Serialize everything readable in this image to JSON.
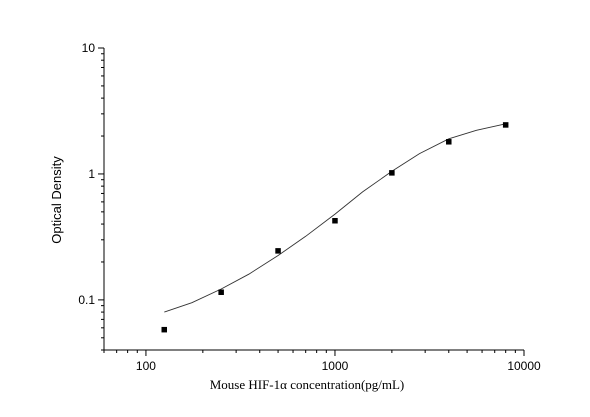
{
  "chart_data": {
    "type": "scatter",
    "title": "",
    "xlabel": "Mouse HIF-1α  concentration(pg/mL)",
    "ylabel": "Optical Density",
    "x_scale": "log",
    "y_scale": "log",
    "xlim": [
      60,
      10000
    ],
    "ylim": [
      0.04,
      10
    ],
    "x_ticks": [
      100,
      1000,
      10000
    ],
    "x_tick_labels": [
      "100",
      "1000",
      "10000"
    ],
    "y_ticks": [
      0.1,
      1,
      10
    ],
    "y_tick_labels": [
      "0.1",
      "1",
      "10"
    ],
    "grid": false,
    "legend": "none",
    "series": [
      {
        "type": "scatter",
        "x": [
          125,
          250,
          500,
          1000,
          2000,
          4000,
          8000
        ],
        "y": [
          0.058,
          0.115,
          0.245,
          0.425,
          1.02,
          1.8,
          2.45
        ]
      },
      {
        "type": "line",
        "fit": "four-parameter logistic",
        "x": [
          125,
          175,
          250,
          350,
          500,
          700,
          1000,
          1400,
          2000,
          2800,
          4000,
          5600,
          8000
        ],
        "y": [
          0.08,
          0.095,
          0.122,
          0.16,
          0.225,
          0.32,
          0.48,
          0.72,
          1.05,
          1.45,
          1.9,
          2.22,
          2.5
        ]
      }
    ],
    "colors": {
      "axis": "#000000",
      "marker": "#000000",
      "curve": "#333333"
    }
  }
}
